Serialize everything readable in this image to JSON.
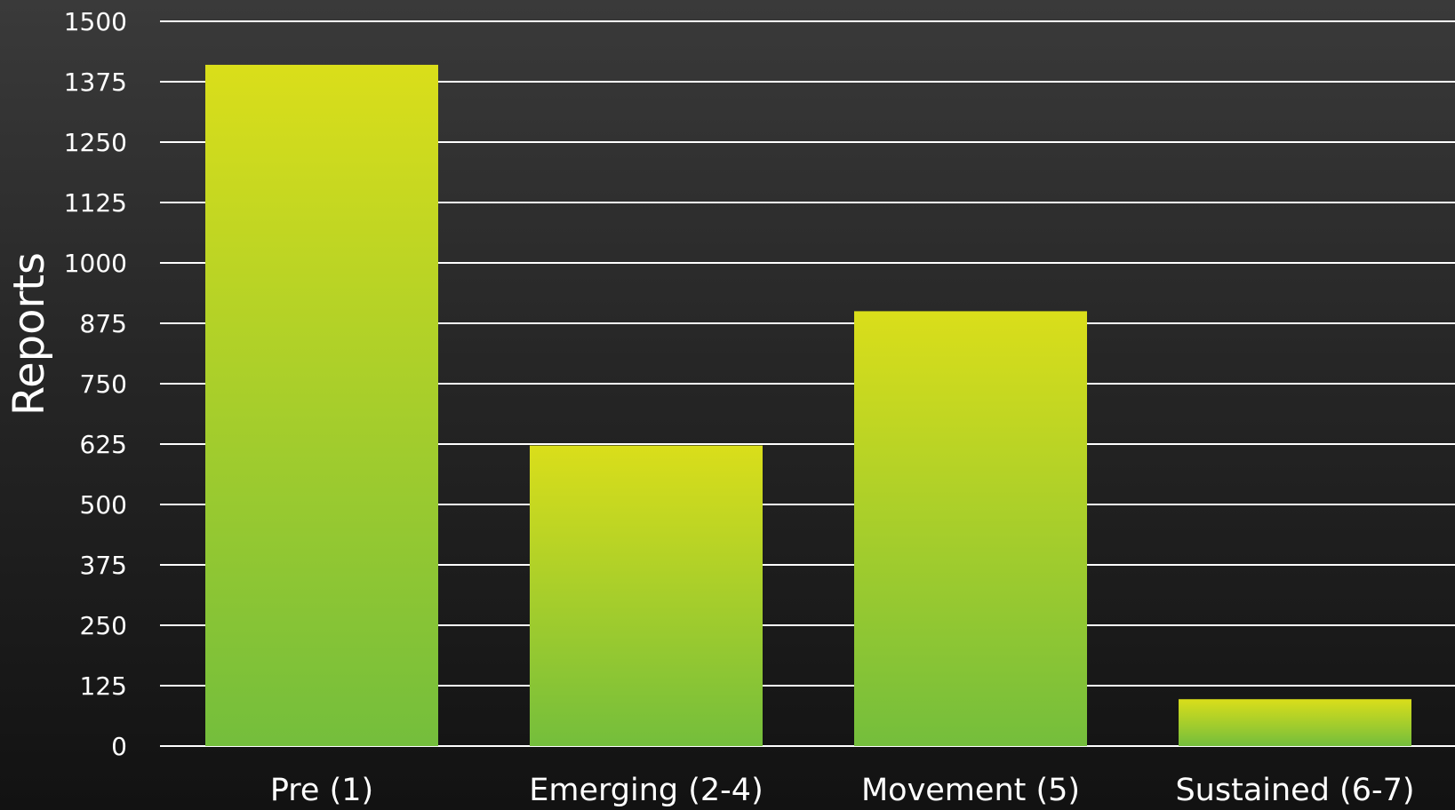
{
  "chart_data": {
    "type": "bar",
    "categories": [
      "Pre (1)",
      "Emerging (2-4)",
      "Movement (5)",
      "Sustained (6-7)"
    ],
    "values": [
      1410,
      622,
      900,
      97
    ],
    "xlabel": "",
    "ylabel": "Reports",
    "ylim": [
      0,
      1500
    ],
    "yticks": [
      0,
      125,
      250,
      375,
      500,
      625,
      750,
      875,
      1000,
      1125,
      1250,
      1375,
      1500
    ],
    "grid": true,
    "legend": "none"
  },
  "colors": {
    "bar_top": "#dade1a",
    "bar_bottom": "#74be3c",
    "grid": "#ffffff",
    "text": "#ffffff"
  }
}
